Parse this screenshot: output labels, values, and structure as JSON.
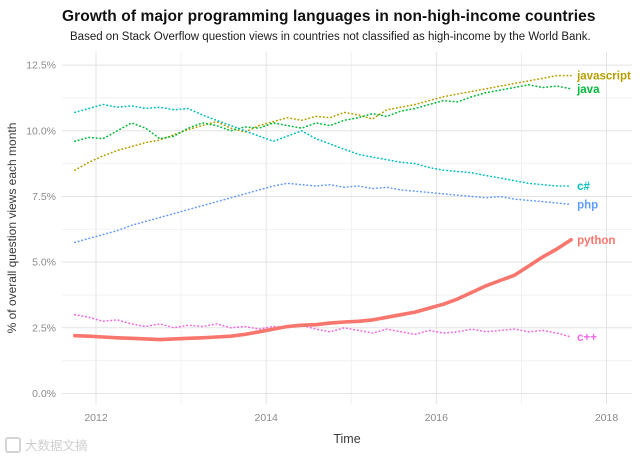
{
  "watermark": {
    "text": "大数据文摘"
  },
  "chart_data": {
    "type": "line",
    "title": "Growth of major programming languages in non-high-income countries",
    "subtitle": "Based on Stack Overflow question views in countries not classified as high-income by the World Bank.",
    "xlabel": "Time",
    "ylabel": "% of overall question views each month",
    "xlim": [
      2011.6,
      2018.3
    ],
    "ylim": [
      -0.4,
      13.0
    ],
    "grid": true,
    "legend_position": "line-end-labels",
    "x_unit": "year",
    "x_start": 2011.75,
    "x_step": 0.1667,
    "x_ticks": [
      {
        "v": 2012,
        "label": "2012"
      },
      {
        "v": 2014,
        "label": "2014"
      },
      {
        "v": 2016,
        "label": "2016"
      },
      {
        "v": 2018,
        "label": "2018"
      }
    ],
    "y_ticks": [
      {
        "v": 0,
        "label": "0.0%"
      },
      {
        "v": 2.5,
        "label": "2.5%"
      },
      {
        "v": 5,
        "label": "5.0%"
      },
      {
        "v": 7.5,
        "label": "7.5%"
      },
      {
        "v": 10,
        "label": "10.0%"
      },
      {
        "v": 12.5,
        "label": "12.5%"
      }
    ],
    "minor_x": [
      2013,
      2015,
      2017
    ],
    "minor_y": [
      1.25,
      3.75,
      6.25,
      8.75,
      11.25
    ],
    "series": [
      {
        "name": "javascript",
        "color": "#B79F00",
        "line_style": "dotted",
        "width": 1.6,
        "values": [
          8.5,
          8.8,
          9.05,
          9.25,
          9.4,
          9.55,
          9.65,
          9.85,
          10.05,
          10.2,
          10.35,
          10.1,
          9.95,
          10.2,
          10.35,
          10.5,
          10.4,
          10.55,
          10.5,
          10.7,
          10.6,
          10.45,
          10.8,
          10.9,
          11.0,
          11.15,
          11.3,
          11.4,
          11.5,
          11.6,
          11.7,
          11.8,
          11.9,
          12.0,
          12.1,
          12.1
        ]
      },
      {
        "name": "java",
        "color": "#00BA38",
        "line_style": "dotted",
        "width": 1.6,
        "values": [
          9.6,
          9.75,
          9.7,
          10.0,
          10.3,
          10.1,
          9.7,
          9.8,
          10.1,
          10.3,
          10.2,
          10.0,
          10.15,
          10.1,
          10.3,
          10.2,
          10.1,
          10.3,
          10.2,
          10.4,
          10.5,
          10.65,
          10.55,
          10.75,
          10.85,
          11.0,
          11.15,
          11.1,
          11.3,
          11.45,
          11.55,
          11.65,
          11.75,
          11.65,
          11.7,
          11.6
        ]
      },
      {
        "name": "c#",
        "color": "#00BFC4",
        "line_style": "dotted",
        "width": 1.6,
        "values": [
          10.7,
          10.85,
          11.0,
          10.9,
          10.95,
          10.85,
          10.9,
          10.8,
          10.85,
          10.6,
          10.4,
          10.2,
          10.0,
          9.8,
          9.6,
          9.8,
          10.0,
          9.7,
          9.5,
          9.3,
          9.1,
          9.0,
          8.9,
          8.8,
          8.75,
          8.6,
          8.5,
          8.45,
          8.4,
          8.3,
          8.2,
          8.1,
          8.0,
          7.95,
          7.9,
          7.9
        ]
      },
      {
        "name": "php",
        "color": "#619CFF",
        "line_style": "dotted",
        "width": 1.6,
        "values": [
          5.75,
          5.9,
          6.05,
          6.2,
          6.4,
          6.55,
          6.7,
          6.85,
          7.0,
          7.15,
          7.3,
          7.45,
          7.6,
          7.75,
          7.9,
          8.0,
          7.95,
          7.9,
          7.95,
          7.85,
          7.9,
          7.8,
          7.85,
          7.75,
          7.7,
          7.65,
          7.6,
          7.55,
          7.5,
          7.45,
          7.5,
          7.4,
          7.35,
          7.3,
          7.25,
          7.2
        ]
      },
      {
        "name": "c++",
        "color": "#F564E3",
        "line_style": "dotted",
        "width": 1.6,
        "values": [
          3.0,
          2.9,
          2.75,
          2.8,
          2.65,
          2.55,
          2.65,
          2.5,
          2.6,
          2.55,
          2.65,
          2.5,
          2.55,
          2.45,
          2.55,
          2.5,
          2.6,
          2.45,
          2.35,
          2.5,
          2.4,
          2.3,
          2.45,
          2.35,
          2.25,
          2.4,
          2.3,
          2.35,
          2.45,
          2.35,
          2.4,
          2.45,
          2.35,
          2.4,
          2.3,
          2.15
        ]
      },
      {
        "name": "python",
        "color": "#F8766D",
        "line_style": "solid",
        "width": 3.6,
        "values": [
          2.2,
          2.18,
          2.15,
          2.12,
          2.1,
          2.08,
          2.05,
          2.08,
          2.1,
          2.12,
          2.15,
          2.18,
          2.25,
          2.35,
          2.45,
          2.55,
          2.6,
          2.62,
          2.68,
          2.72,
          2.75,
          2.8,
          2.9,
          3.0,
          3.1,
          3.25,
          3.4,
          3.6,
          3.85,
          4.1,
          4.3,
          4.5,
          4.85,
          5.2,
          5.5,
          5.85
        ]
      }
    ]
  }
}
